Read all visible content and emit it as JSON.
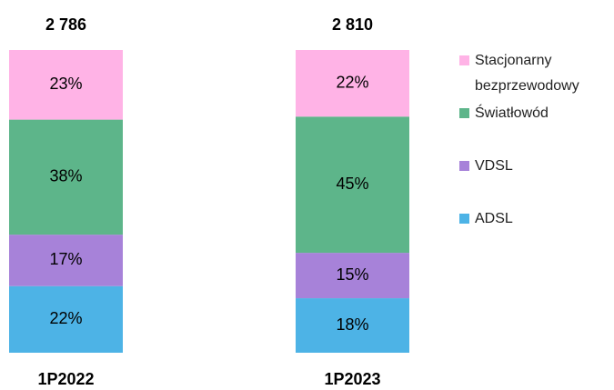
{
  "chart_data": {
    "type": "stacked_bar",
    "categories": [
      "1P2022",
      "1P2023"
    ],
    "totals": {
      "values": [
        2786,
        2810
      ],
      "value_labels": [
        "2 786",
        "2 810"
      ]
    },
    "series": [
      {
        "name": "ADSL",
        "color": "#4db3e6",
        "values": [
          22,
          18
        ],
        "value_labels": [
          "22%",
          "18%"
        ]
      },
      {
        "name": "VDSL",
        "color": "#a782d9",
        "values": [
          17,
          15
        ],
        "value_labels": [
          "17%",
          "15%"
        ]
      },
      {
        "name": "Światłowód",
        "color": "#5db58a",
        "values": [
          38,
          45
        ],
        "value_labels": [
          "38%",
          "45%"
        ]
      },
      {
        "name": "Stacjonarny bezprzewodowy",
        "color": "#ffb3e6",
        "values": [
          23,
          22
        ],
        "value_labels": [
          "23%",
          "22%"
        ]
      }
    ],
    "legend": "right"
  }
}
